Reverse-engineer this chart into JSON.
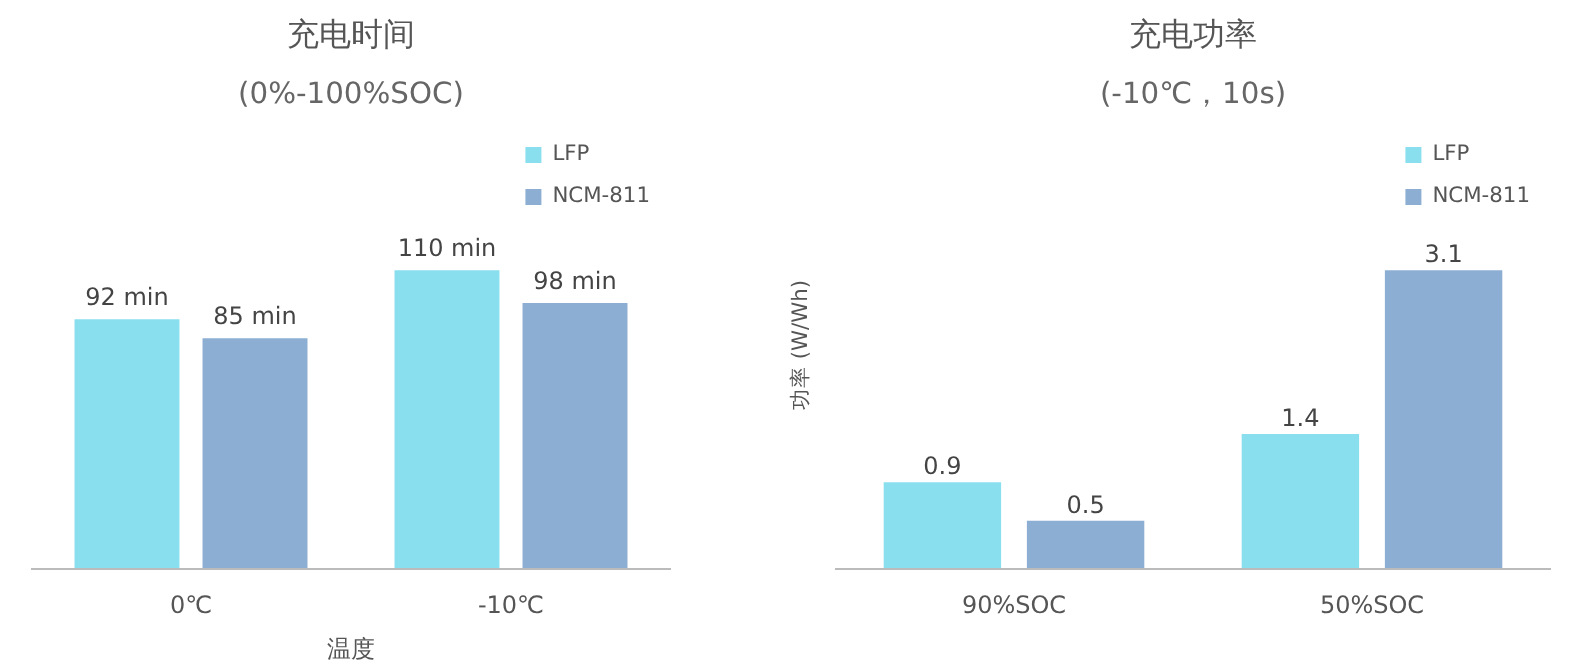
{
  "chart_data": [
    {
      "type": "bar",
      "title": "充电时间",
      "subtitle": "(0%-100%SOC)",
      "categories": [
        "0℃",
        "-10℃"
      ],
      "xlabel": "温度",
      "tick_labels": "x",
      "grid": false,
      "legend": "top right",
      "series": [
        {
          "name": "LFP",
          "color": "#8adfef",
          "values": [
            92,
            110
          ],
          "value_labels": [
            "92 min",
            "110 min"
          ]
        },
        {
          "name": "NCM-811",
          "color": "#8daed3",
          "values": [
            85,
            98
          ],
          "value_labels": [
            "85 min",
            "98 min"
          ]
        }
      ]
    },
    {
      "type": "bar",
      "title": "充电功率",
      "subtitle": "(-10℃，10s)",
      "categories": [
        "90%SOC",
        "50%SOC"
      ],
      "ylabel": "功率 (W/Wh)",
      "tick_labels": "x",
      "grid": false,
      "legend": "top right",
      "data_labels": true,
      "series": [
        {
          "name": "LFP",
          "color": "#8adfef",
          "values": [
            0.9,
            1.4
          ]
        },
        {
          "name": "NCM-811",
          "color": "#8daed3",
          "values": [
            0.5,
            3.1
          ]
        }
      ]
    }
  ]
}
